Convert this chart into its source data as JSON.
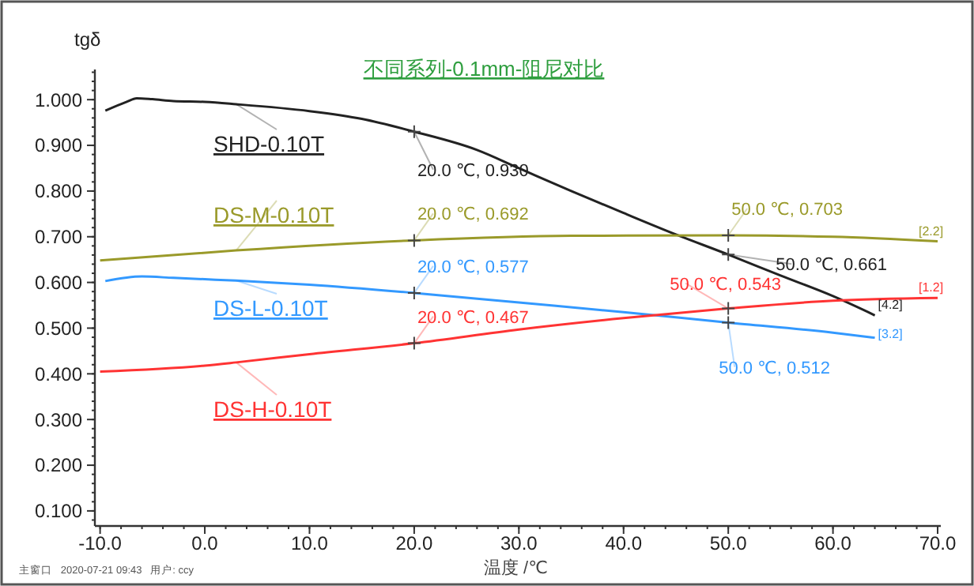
{
  "chart_data": {
    "type": "line",
    "title": "不同系列-0.1mm-阻尼对比",
    "xlabel": "温度 /℃",
    "ylabel": "tgδ",
    "xlim": [
      -10.5,
      70.3
    ],
    "ylim": [
      0.067,
      1.066
    ],
    "xticks": [
      {
        "value": -10,
        "label": "-10.0"
      },
      {
        "value": 0,
        "label": "0.0"
      },
      {
        "value": 10,
        "label": "10.0"
      },
      {
        "value": 20,
        "label": "20.0"
      },
      {
        "value": 30,
        "label": "30.0"
      },
      {
        "value": 40,
        "label": "40.0"
      },
      {
        "value": 50,
        "label": "50.0"
      },
      {
        "value": 60,
        "label": "60.0"
      },
      {
        "value": 70,
        "label": "70.0"
      }
    ],
    "yticks": [
      {
        "value": 0.1,
        "label": "0.100"
      },
      {
        "value": 0.2,
        "label": "0.200"
      },
      {
        "value": 0.3,
        "label": "0.300"
      },
      {
        "value": 0.4,
        "label": "0.400"
      },
      {
        "value": 0.5,
        "label": "0.500"
      },
      {
        "value": 0.6,
        "label": "0.600"
      },
      {
        "value": 0.7,
        "label": "0.700"
      },
      {
        "value": 0.8,
        "label": "0.800"
      },
      {
        "value": 0.9,
        "label": "0.900"
      },
      {
        "value": 1.0,
        "label": "1.000"
      }
    ],
    "grid": false,
    "legend": "left",
    "marker": "none",
    "line_style": "solid",
    "series": [
      {
        "name": "SHD-0.10T",
        "color": "#222222",
        "x": [
          -9.5,
          -7.5,
          -6.5,
          -5,
          -3,
          0,
          3,
          10,
          15,
          20,
          26,
          30,
          35,
          40,
          45,
          50,
          55,
          60,
          64
        ],
        "values": [
          0.976,
          0.995,
          1.003,
          1.001,
          0.997,
          0.995,
          0.99,
          0.975,
          0.958,
          0.93,
          0.89,
          0.85,
          0.8,
          0.752,
          0.705,
          0.661,
          0.615,
          0.57,
          0.528
        ]
      },
      {
        "name": "DS-M-0.10T",
        "color": "#9a9a2a",
        "x": [
          -10,
          3,
          20,
          35,
          50,
          60,
          70
        ],
        "values": [
          0.648,
          0.67,
          0.692,
          0.702,
          0.703,
          0.7,
          0.69
        ]
      },
      {
        "name": "DS-L-0.10T",
        "color": "#3399ff",
        "x": [
          -9.5,
          -6,
          -3,
          0,
          3,
          10,
          20,
          30,
          40,
          50,
          60,
          64
        ],
        "values": [
          0.603,
          0.613,
          0.61,
          0.607,
          0.604,
          0.595,
          0.577,
          0.556,
          0.535,
          0.512,
          0.49,
          0.479
        ]
      },
      {
        "name": "DS-H-0.10T",
        "color": "#ff3333",
        "x": [
          -10,
          0,
          3,
          10,
          20,
          30,
          40,
          50,
          60,
          70
        ],
        "values": [
          0.405,
          0.418,
          0.425,
          0.443,
          0.467,
          0.497,
          0.522,
          0.543,
          0.56,
          0.566
        ]
      }
    ],
    "annotations": [
      {
        "text": "20.0 ℃, 0.930",
        "x": 20,
        "y": 0.93
      },
      {
        "text": "20.0 ℃, 0.692",
        "x": 20,
        "y": 0.692
      },
      {
        "text": "20.0 ℃, 0.577",
        "x": 20,
        "y": 0.577
      },
      {
        "text": "20.0 ℃, 0.467",
        "x": 20,
        "y": 0.467
      },
      {
        "text": "50.0 ℃, 0.703",
        "x": 50,
        "y": 0.703
      },
      {
        "text": "50.0 ℃, 0.661",
        "x": 50,
        "y": 0.661
      },
      {
        "text": "50.0 ℃, 0.543",
        "x": 50,
        "y": 0.543
      },
      {
        "text": "50.0 ℃, 0.512",
        "x": 50,
        "y": 0.512
      },
      {
        "text": "[4.2]",
        "x": 64,
        "y": 0.528
      },
      {
        "text": "[2.2]",
        "x": 70,
        "y": 0.69
      },
      {
        "text": "[1.2]",
        "x": 70,
        "y": 0.566
      },
      {
        "text": "[3.2]",
        "x": 64,
        "y": 0.479
      },
      "主窗口   2020-07-21 09:43   用户: ccy"
    ]
  }
}
